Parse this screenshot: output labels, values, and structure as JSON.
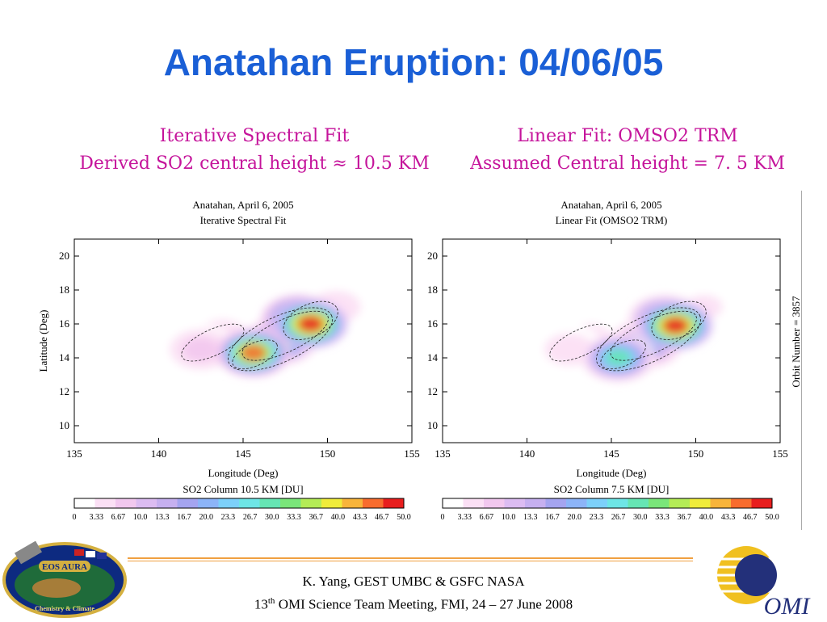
{
  "slide": {
    "title": "Anatahan Eruption: 04/06/05",
    "left_caption": {
      "line1": "Iterative Spectral Fit",
      "line2": "Derived SO2 central height ≈ 10.5 KM"
    },
    "right_caption": {
      "line1": "Linear Fit: OMSO2 TRM",
      "line2": "Assumed Central height = 7. 5 KM"
    },
    "orbit_label": "Orbit Number = 3857",
    "footer": {
      "line1": "K. Yang, GEST UMBC  & GSFC NASA",
      "line2_pre": "13",
      "line2_sup": "th",
      "line2_post": " OMI Science Team Meeting, FMI, 24 – 27 June 2008"
    },
    "logos": {
      "left": "EOS AURA",
      "left_sub": "Chemistry & Climate",
      "right": "OMI"
    }
  },
  "colors": {
    "title": "#1a5fd6",
    "caption": "#c5149b",
    "footer_rule": "#f0a040"
  },
  "chart_data": [
    {
      "type": "heatmap",
      "title": "Anatahan, April 6, 2005",
      "subtitle": "Iterative Spectral Fit",
      "xlabel": "Longitude (Deg)",
      "ylabel": "Latitude (Deg)",
      "xlim": [
        135,
        155
      ],
      "ylim": [
        9,
        21
      ],
      "xticks": [
        "135",
        "140",
        "145",
        "150",
        "155"
      ],
      "yticks": [
        "10",
        "12",
        "14",
        "16",
        "18",
        "20"
      ],
      "colorbar_label": "SO2 Column 10.5 KM [DU]",
      "colorbar_ticks": [
        "0",
        "3.33",
        "6.67",
        "10.0",
        "13.3",
        "16.7",
        "20.0",
        "23.3",
        "26.7",
        "30.0",
        "33.3",
        "36.7",
        "40.0",
        "43.3",
        "46.7",
        "50.0"
      ],
      "colorbar_range": [
        0,
        50
      ],
      "blobs": [
        {
          "lon": 149.0,
          "lat": 16.0,
          "value": 50
        },
        {
          "lon": 145.6,
          "lat": 14.3,
          "value": 46
        },
        {
          "lon": 147.2,
          "lat": 15.0,
          "value": 30
        },
        {
          "lon": 148.3,
          "lat": 16.3,
          "value": 35
        },
        {
          "lon": 142.5,
          "lat": 14.5,
          "value": 8
        },
        {
          "lon": 143.8,
          "lat": 15.3,
          "value": 6
        },
        {
          "lon": 150.5,
          "lat": 17.0,
          "value": 6
        }
      ]
    },
    {
      "type": "heatmap",
      "title": "Anatahan, April 6, 2005",
      "subtitle": "Linear Fit (OMSO2 TRM)",
      "xlabel": "Longitude (Deg)",
      "ylabel": "",
      "xlim": [
        135,
        155
      ],
      "ylim": [
        9,
        21
      ],
      "xticks": [
        "135",
        "140",
        "145",
        "150",
        "155"
      ],
      "yticks": [
        "10",
        "12",
        "14",
        "16",
        "18",
        "20"
      ],
      "colorbar_label": "SO2 Column 7.5 KM [DU]",
      "colorbar_ticks": [
        "0",
        "3.33",
        "6.67",
        "10.0",
        "13.3",
        "16.7",
        "20.0",
        "23.3",
        "26.7",
        "30.0",
        "33.3",
        "36.7",
        "40.0",
        "43.3",
        "46.7",
        "50.0"
      ],
      "colorbar_range": [
        0,
        50
      ],
      "blobs": [
        {
          "lon": 148.8,
          "lat": 15.9,
          "value": 48
        },
        {
          "lon": 145.4,
          "lat": 14.0,
          "value": 30
        },
        {
          "lon": 147.0,
          "lat": 14.8,
          "value": 22
        },
        {
          "lon": 148.2,
          "lat": 16.3,
          "value": 28
        },
        {
          "lon": 142.5,
          "lat": 14.5,
          "value": 6
        },
        {
          "lon": 143.8,
          "lat": 15.3,
          "value": 5
        },
        {
          "lon": 150.5,
          "lat": 17.0,
          "value": 5
        }
      ]
    }
  ]
}
